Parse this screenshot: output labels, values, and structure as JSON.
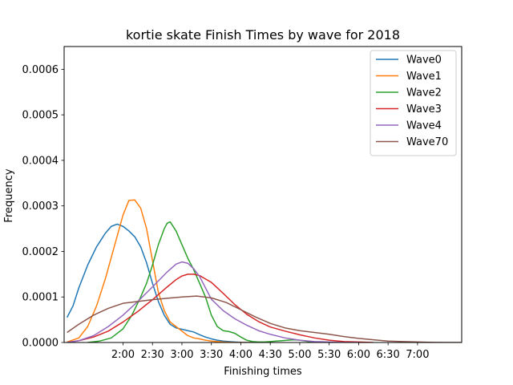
{
  "chart_data": {
    "type": "line",
    "title": "kortie skate Finish Times by wave for 2018",
    "xlabel": "Finishing times",
    "ylabel": "Frequency",
    "xlim": [
      20,
      155
    ],
    "ylim": [
      0,
      0.00065
    ],
    "x_ticks": [
      {
        "value": 40,
        "label": "2:00"
      },
      {
        "value": 50,
        "label": "2:30"
      },
      {
        "value": 60,
        "label": "3:00"
      },
      {
        "value": 70,
        "label": "3:30"
      },
      {
        "value": 80,
        "label": "4:00"
      },
      {
        "value": 90,
        "label": "4:30"
      },
      {
        "value": 100,
        "label": "5:00"
      },
      {
        "value": 110,
        "label": "5:30"
      },
      {
        "value": 120,
        "label": "6:00"
      },
      {
        "value": 130,
        "label": "6:30"
      },
      {
        "value": 140,
        "label": "7:00"
      }
    ],
    "y_ticks": [
      {
        "value": 0.0,
        "label": "0.0000"
      },
      {
        "value": 0.0001,
        "label": "0.0001"
      },
      {
        "value": 0.0002,
        "label": "0.0002"
      },
      {
        "value": 0.0003,
        "label": "0.0003"
      },
      {
        "value": 0.0004,
        "label": "0.0004"
      },
      {
        "value": 0.0005,
        "label": "0.0005"
      },
      {
        "value": 0.0006,
        "label": "0.0006"
      }
    ],
    "grid": false,
    "legend_position": "top-right",
    "series": [
      {
        "name": "Wave0",
        "color": "#1f77b4",
        "x": [
          21,
          23,
          25,
          28,
          31,
          34,
          36,
          38,
          40,
          42,
          44,
          46,
          48,
          50,
          52,
          54,
          56,
          58,
          60,
          62,
          64,
          66,
          68,
          70,
          72,
          74,
          76,
          78,
          80,
          85,
          90
        ],
        "y": [
          5.5e-05,
          8e-05,
          0.00012,
          0.00017,
          0.00021,
          0.00024,
          0.000255,
          0.00026,
          0.000255,
          0.000245,
          0.000232,
          0.00021,
          0.000175,
          0.00013,
          9e-05,
          6e-05,
          4e-05,
          3.2e-05,
          2.9e-05,
          2.6e-05,
          2.3e-05,
          1.7e-05,
          1.2e-05,
          8e-06,
          5e-06,
          3e-06,
          2e-06,
          1e-06,
          5e-07,
          0.0,
          0.0
        ]
      },
      {
        "name": "Wave1",
        "color": "#ff7f0e",
        "x": [
          21,
          25,
          28,
          31,
          34,
          37,
          40,
          42,
          44,
          46,
          48,
          50,
          52,
          54,
          56,
          58,
          60,
          62,
          64,
          66,
          68,
          70,
          72,
          74,
          76,
          78,
          80,
          85
        ],
        "y": [
          1e-06,
          1e-05,
          3.5e-05,
          8e-05,
          0.00014,
          0.00021,
          0.00028,
          0.000312,
          0.000313,
          0.000295,
          0.00025,
          0.00018,
          0.00011,
          7e-05,
          4.5e-05,
          3.5e-05,
          2.5e-05,
          1.5e-05,
          1e-05,
          8e-06,
          5e-06,
          3e-06,
          2e-06,
          1e-06,
          5e-07,
          0.0,
          0.0,
          0.0
        ]
      },
      {
        "name": "Wave2",
        "color": "#2ca02c",
        "x": [
          28,
          32,
          36,
          40,
          43,
          46,
          48,
          50,
          52,
          54,
          55,
          56,
          58,
          60,
          62,
          64,
          66,
          68,
          70,
          72,
          74,
          76,
          78,
          80,
          82,
          84,
          86,
          88,
          90,
          92,
          94,
          96,
          98,
          100,
          102,
          104,
          106,
          110
        ],
        "y": [
          0.0,
          3e-06,
          1e-05,
          3e-05,
          6e-05,
          0.0001,
          0.00013,
          0.00017,
          0.000215,
          0.00025,
          0.000262,
          0.000265,
          0.000245,
          0.000215,
          0.000185,
          0.00016,
          0.00013,
          0.0001,
          6e-05,
          3.5e-05,
          2.6e-05,
          2.4e-05,
          2e-05,
          1.2e-05,
          5e-06,
          2e-06,
          1e-06,
          1e-06,
          2e-06,
          3e-06,
          4e-06,
          5e-06,
          6e-06,
          5e-06,
          3e-06,
          1e-06,
          0.0,
          0.0
        ]
      },
      {
        "name": "Wave3",
        "color": "#d62728",
        "x": [
          21,
          25,
          30,
          35,
          40,
          45,
          50,
          55,
          58,
          60,
          62,
          64,
          66,
          70,
          74,
          78,
          82,
          86,
          90,
          95,
          100,
          105,
          110,
          115,
          120,
          125
        ],
        "y": [
          0.0,
          4e-06,
          1.2e-05,
          2.5e-05,
          4.5e-05,
          6.8e-05,
          9.4e-05,
          0.000122,
          0.000138,
          0.000146,
          0.00015,
          0.00015,
          0.000147,
          0.000132,
          0.000108,
          8.3e-05,
          6.2e-05,
          4.6e-05,
          3.4e-05,
          2.5e-05,
          1.7e-05,
          1e-05,
          5e-06,
          2e-06,
          1e-06,
          0.0
        ]
      },
      {
        "name": "Wave4",
        "color": "#9467bd",
        "x": [
          21,
          25,
          30,
          35,
          40,
          45,
          50,
          55,
          58,
          60,
          62,
          64,
          66,
          68,
          70,
          74,
          78,
          82,
          86,
          90,
          95,
          100,
          105,
          110,
          115,
          120
        ],
        "y": [
          0.0,
          4e-06,
          1.5e-05,
          3.5e-05,
          6e-05,
          9e-05,
          0.000122,
          0.000155,
          0.000172,
          0.000177,
          0.000174,
          0.000162,
          0.000145,
          0.00012,
          9.5e-05,
          7e-05,
          5.2e-05,
          3.8e-05,
          2.6e-05,
          1.8e-05,
          1e-05,
          5e-06,
          2e-06,
          1e-06,
          0.0,
          0.0
        ]
      },
      {
        "name": "Wave70",
        "color": "#8c564b",
        "x": [
          21,
          25,
          30,
          35,
          40,
          45,
          50,
          55,
          60,
          65,
          70,
          75,
          80,
          85,
          90,
          95,
          100,
          105,
          110,
          115,
          120,
          125,
          130,
          135,
          140,
          145,
          150,
          155
        ],
        "y": [
          2.2e-05,
          4e-05,
          6e-05,
          7.5e-05,
          8.6e-05,
          9e-05,
          9.4e-05,
          9.7e-05,
          0.0001,
          0.000102,
          9.8e-05,
          8.8e-05,
          7.2e-05,
          5.6e-05,
          4.2e-05,
          3.2e-05,
          2.6e-05,
          2.2e-05,
          1.8e-05,
          1.3e-05,
          9e-06,
          6e-06,
          3e-06,
          2e-06,
          1e-06,
          3e-07,
          0.0,
          0.0
        ]
      }
    ]
  }
}
